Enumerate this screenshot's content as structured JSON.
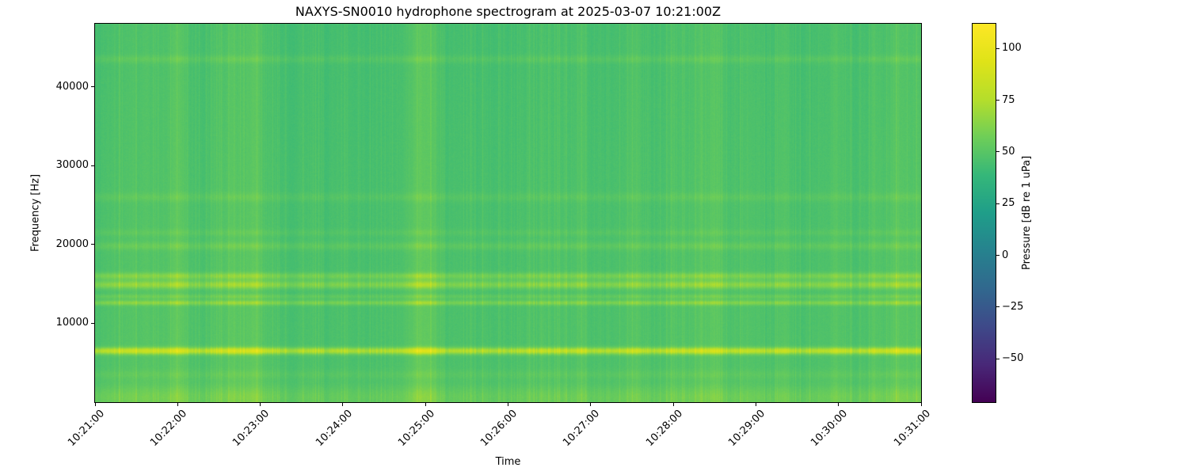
{
  "chart_data": {
    "type": "heatmap",
    "title": "NAXYS-SN0010 hydrophone spectrogram at 2025-03-07 10:21:00Z",
    "xlabel": "Time",
    "ylabel": "Frequency [Hz]",
    "time_range_seconds": [
      0,
      600
    ],
    "freq_range_hz": [
      0,
      48000
    ],
    "x_ticks": {
      "values": [
        0,
        60,
        120,
        180,
        240,
        300,
        360,
        420,
        480,
        540,
        600
      ],
      "labels": [
        "10:21:00",
        "10:22:00",
        "10:23:00",
        "10:24:00",
        "10:25:00",
        "10:26:00",
        "10:27:00",
        "10:28:00",
        "10:29:00",
        "10:30:00",
        "10:31:00"
      ]
    },
    "y_ticks": {
      "values": [
        10000,
        20000,
        30000,
        40000
      ],
      "labels": [
        "10000",
        "20000",
        "30000",
        "40000"
      ]
    },
    "colorbar": {
      "label": "Pressure [dB re 1 uPa]",
      "position": "right",
      "vmin": -71,
      "vmax": 112,
      "tick_values": [
        100,
        75,
        50,
        25,
        0,
        -25,
        -50
      ],
      "tick_labels": [
        "100",
        "75",
        "50",
        "25",
        "0",
        "−25",
        "−50"
      ]
    },
    "colormap_name": "viridis",
    "colormap": [
      [
        0.0,
        "#440154"
      ],
      [
        0.1,
        "#482878"
      ],
      [
        0.2,
        "#3e4989"
      ],
      [
        0.3,
        "#31688e"
      ],
      [
        0.4,
        "#26828e"
      ],
      [
        0.5,
        "#1f9e89"
      ],
      [
        0.6,
        "#35b779"
      ],
      [
        0.7,
        "#6ece58"
      ],
      [
        0.8,
        "#b5de2b"
      ],
      [
        0.9,
        "#dfe318"
      ],
      [
        1.0,
        "#fde725"
      ]
    ],
    "base_level_db": 46,
    "tonal_bands_hz": [
      {
        "f": 600,
        "s": 1000,
        "a": 7
      },
      {
        "f": 3500,
        "s": 400,
        "a": 3
      },
      {
        "f": 6500,
        "s": 300,
        "a": 26
      },
      {
        "f": 12600,
        "s": 220,
        "a": 12
      },
      {
        "f": 13400,
        "s": 200,
        "a": 6
      },
      {
        "f": 14900,
        "s": 350,
        "a": 14
      },
      {
        "f": 16000,
        "s": 300,
        "a": 11
      },
      {
        "f": 19800,
        "s": 350,
        "a": 5
      },
      {
        "f": 21500,
        "s": 300,
        "a": 3
      },
      {
        "f": 26000,
        "s": 400,
        "a": 3.5
      },
      {
        "f": 43500,
        "s": 350,
        "a": 4
      }
    ],
    "transient_events_seconds": [
      {
        "t": 32,
        "s": 14,
        "a": 6
      },
      {
        "t": 56,
        "s": 5,
        "a": 8
      },
      {
        "t": 62,
        "s": 3,
        "a": 6
      },
      {
        "t": 100,
        "s": 12,
        "a": 9
      },
      {
        "t": 118,
        "s": 4,
        "a": 8
      },
      {
        "t": 236,
        "s": 7,
        "a": 12
      },
      {
        "t": 246,
        "s": 3,
        "a": 6
      },
      {
        "t": 330,
        "s": 12,
        "a": 3.5
      },
      {
        "t": 352,
        "s": 4,
        "a": 5
      },
      {
        "t": 392,
        "s": 5,
        "a": 7
      },
      {
        "t": 420,
        "s": 3,
        "a": 5
      },
      {
        "t": 440,
        "s": 9,
        "a": 8
      },
      {
        "t": 452,
        "s": 4,
        "a": 6
      },
      {
        "t": 476,
        "s": 5,
        "a": 5
      },
      {
        "t": 500,
        "s": 4,
        "a": 6
      },
      {
        "t": 538,
        "s": 5,
        "a": 5
      },
      {
        "t": 566,
        "s": 3,
        "a": 5
      },
      {
        "t": 582,
        "s": 8,
        "a": 8
      },
      {
        "t": 597,
        "s": 4,
        "a": 7
      }
    ],
    "grid": false,
    "legend": "none"
  }
}
